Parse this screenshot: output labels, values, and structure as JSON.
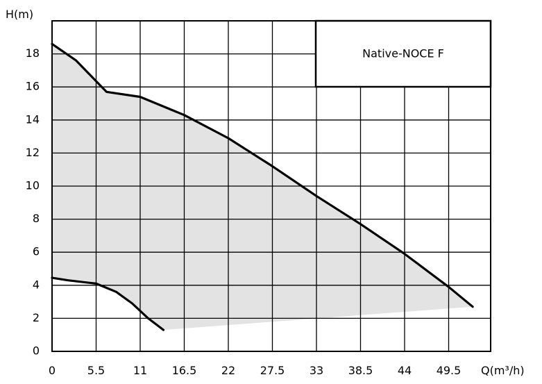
{
  "chart_data": {
    "type": "area",
    "title": "",
    "xlabel": "Q(m³/h)",
    "ylabel": "H(m)",
    "xlim": [
      0,
      55
    ],
    "ylim": [
      0,
      20
    ],
    "x_ticks": [
      "0",
      "5.5",
      "11",
      "16.5",
      "22",
      "27.5",
      "33",
      "38.5",
      "44",
      "49.5"
    ],
    "y_ticks": [
      "0",
      "2",
      "4",
      "6",
      "8",
      "10",
      "12",
      "14",
      "16",
      "18"
    ],
    "grid": true,
    "legend_position": "top-right",
    "legend_label": "Native-NOCE F",
    "series": [
      {
        "role": "max-curve",
        "x": [
          0,
          3,
          6.8,
          11,
          16.5,
          22,
          27.5,
          33,
          38.5,
          44,
          49.5,
          52.5
        ],
        "y": [
          18.6,
          17.6,
          15.7,
          15.4,
          14.3,
          12.9,
          11.2,
          9.4,
          7.7,
          5.9,
          3.9,
          2.7
        ]
      },
      {
        "role": "min-curve",
        "x": [
          0,
          2,
          5.5,
          8,
          10,
          12,
          13.9
        ],
        "y": [
          4.45,
          4.3,
          4.1,
          3.6,
          2.9,
          2.0,
          1.3
        ]
      }
    ],
    "colors": {
      "fill": "#e3e3e3",
      "curve": "#000000",
      "grid": "#000000"
    }
  }
}
